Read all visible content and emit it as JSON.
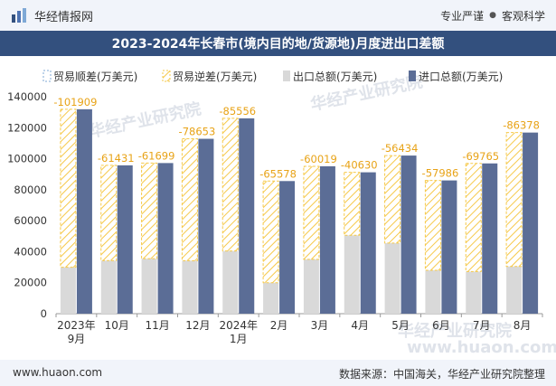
{
  "header": {
    "brand": "华经情报网",
    "tag_left": "专业严谨",
    "separator": "●",
    "tag_right": "客观科学"
  },
  "title": "2023-2024年长春市(境内目的地/货源地)月度进出口差额",
  "footer": {
    "site": "www.huaon.com",
    "source": "数据来源：中国海关，华经产业研究院整理"
  },
  "watermarks": [
    "华经产业研究院",
    "www.huaon.com"
  ],
  "colors": {
    "export": "#d9d9d9",
    "import": "#5b6d96",
    "diff": "#f6c94a",
    "surplus_border": "#7fa9d6"
  },
  "chart_data": {
    "type": "bar",
    "categories": [
      "2023年\n9月",
      "10月",
      "11月",
      "12月",
      "2024年\n1月",
      "2月",
      "3月",
      "4月",
      "5月",
      "6月",
      "7月",
      "8月"
    ],
    "series": [
      {
        "name": "贸易顺差(万美元)",
        "values": [
          0,
          0,
          0,
          0,
          0,
          0,
          0,
          0,
          0,
          0,
          0,
          0
        ]
      },
      {
        "name": "贸易逆差(万美元)",
        "values": [
          101909,
          61431,
          61699,
          78653,
          85556,
          65578,
          60019,
          40630,
          56434,
          57986,
          69765,
          86378
        ]
      },
      {
        "name": "出口总额(万美元)",
        "values": [
          30000,
          34300,
          35500,
          34200,
          40500,
          20000,
          35100,
          50600,
          45600,
          28000,
          27200,
          30500
        ]
      },
      {
        "name": "进口总额(万美元)",
        "values": [
          131909,
          95731,
          97199,
          112853,
          126056,
          85578,
          95119,
          91230,
          102034,
          85986,
          96965,
          116878
        ]
      }
    ],
    "data_labels": [
      "-101909",
      "-61431",
      "-61699",
      "-78653",
      "-85556",
      "-65578",
      "-60019",
      "-40630",
      "-56434",
      "-57986",
      "-69765",
      "-86378"
    ],
    "ylim": [
      0,
      140000
    ],
    "yticks": [
      0,
      20000,
      40000,
      60000,
      80000,
      100000,
      120000,
      140000
    ],
    "legend_position": "top-right",
    "grid": false
  }
}
